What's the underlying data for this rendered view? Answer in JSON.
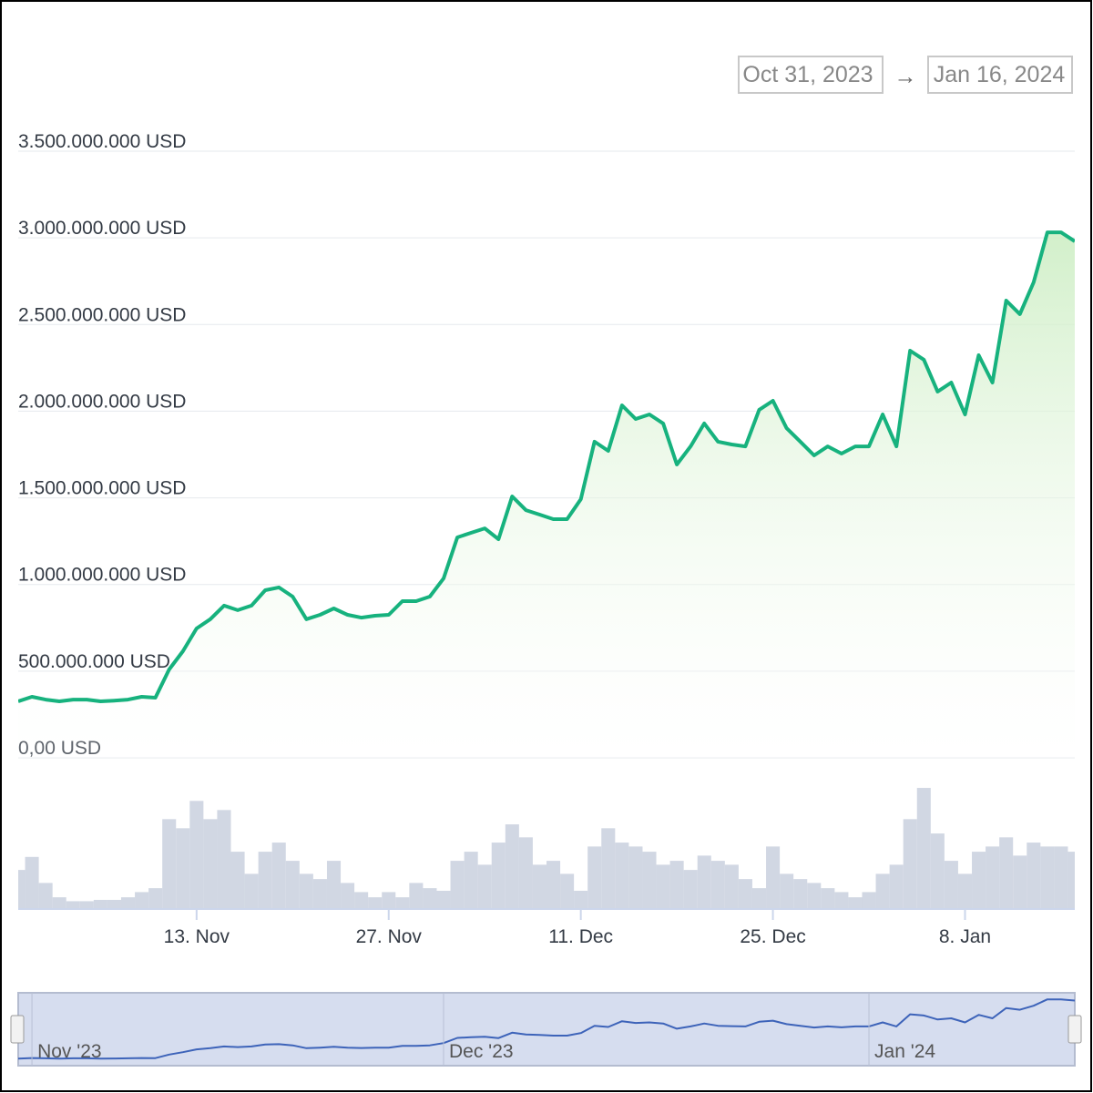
{
  "chart_data": {
    "type": "line",
    "range_from": "Oct 31, 2023",
    "range_separator": "→",
    "range_to": "Jan 16, 2024",
    "x": [
      "2023-10-31",
      "2023-11-01",
      "2023-11-02",
      "2023-11-03",
      "2023-11-04",
      "2023-11-05",
      "2023-11-06",
      "2023-11-07",
      "2023-11-08",
      "2023-11-09",
      "2023-11-10",
      "2023-11-11",
      "2023-11-12",
      "2023-11-13",
      "2023-11-14",
      "2023-11-15",
      "2023-11-16",
      "2023-11-17",
      "2023-11-18",
      "2023-11-19",
      "2023-11-20",
      "2023-11-21",
      "2023-11-22",
      "2023-11-23",
      "2023-11-24",
      "2023-11-25",
      "2023-11-26",
      "2023-11-27",
      "2023-11-28",
      "2023-11-29",
      "2023-11-30",
      "2023-12-01",
      "2023-12-02",
      "2023-12-03",
      "2023-12-04",
      "2023-12-05",
      "2023-12-06",
      "2023-12-07",
      "2023-12-08",
      "2023-12-09",
      "2023-12-10",
      "2023-12-11",
      "2023-12-12",
      "2023-12-13",
      "2023-12-14",
      "2023-12-15",
      "2023-12-16",
      "2023-12-17",
      "2023-12-18",
      "2023-12-19",
      "2023-12-20",
      "2023-12-21",
      "2023-12-22",
      "2023-12-23",
      "2023-12-24",
      "2023-12-25",
      "2023-12-26",
      "2023-12-27",
      "2023-12-28",
      "2023-12-29",
      "2023-12-30",
      "2023-12-31",
      "2024-01-01",
      "2024-01-02",
      "2024-01-03",
      "2024-01-04",
      "2024-01-05",
      "2024-01-06",
      "2024-01-07",
      "2024-01-08",
      "2024-01-09",
      "2024-01-10",
      "2024-01-11",
      "2024-01-12",
      "2024-01-13",
      "2024-01-14",
      "2024-01-15",
      "2024-01-16"
    ],
    "series": [
      {
        "color": "#17b27e",
        "values": [
          326000000,
          352000000,
          336000000,
          326000000,
          336000000,
          336000000,
          326000000,
          330000000,
          336000000,
          352000000,
          347000000,
          510000000,
          615000000,
          746000000,
          800000000,
          878000000,
          852000000,
          878000000,
          967000000,
          983000000,
          930000000,
          800000000,
          825000000,
          862000000,
          825000000,
          809000000,
          820000000,
          825000000,
          904000000,
          904000000,
          930000000,
          1035000000,
          1272000000,
          1298000000,
          1324000000,
          1261000000,
          1508000000,
          1429000000,
          1403000000,
          1377000000,
          1377000000,
          1492000000,
          1824000000,
          1771000000,
          2034000000,
          1955000000,
          1981000000,
          1929000000,
          1692000000,
          1797000000,
          1929000000,
          1824000000,
          1808000000,
          1797000000,
          2008000000,
          2060000000,
          1902000000,
          1824000000,
          1745000000,
          1797000000,
          1755000000,
          1797000000,
          1797000000,
          1981000000,
          1797000000,
          2349000000,
          2297000000,
          2113000000,
          2165000000,
          1981000000,
          2323000000,
          2165000000,
          2638000000,
          2560000000,
          2743000000,
          3032000000,
          3032000000,
          2980000000
        ]
      },
      {
        "color": "#c9d0de",
        "type": "column",
        "values": [
          30,
          40,
          20,
          9,
          6,
          6,
          7,
          7,
          9,
          13,
          16,
          69,
          62,
          83,
          69,
          76,
          44,
          27,
          44,
          51,
          37,
          27,
          23,
          37,
          20,
          13,
          9,
          13,
          9,
          20,
          16,
          14,
          37,
          44,
          34,
          51,
          65,
          55,
          34,
          37,
          27,
          14,
          48,
          62,
          51,
          48,
          44,
          34,
          37,
          30,
          41,
          37,
          34,
          23,
          16,
          48,
          27,
          23,
          20,
          16,
          13,
          9,
          13,
          27,
          34,
          69,
          93,
          58,
          37,
          27,
          44,
          48,
          55,
          41,
          51,
          48,
          48,
          44
        ]
      }
    ],
    "xlim": [
      "2023-10-31",
      "2024-01-16"
    ],
    "xticks": [
      {
        "value": "2023-11-13",
        "label": "13. Nov"
      },
      {
        "value": "2023-11-27",
        "label": "27. Nov"
      },
      {
        "value": "2023-12-11",
        "label": "11. Dec"
      },
      {
        "value": "2023-12-25",
        "label": "25. Dec"
      },
      {
        "value": "2024-01-08",
        "label": "8. Jan"
      }
    ],
    "ylim": [
      0,
      3500000000
    ],
    "yticks": [
      {
        "value": 0,
        "label": "0,00 USD"
      },
      {
        "value": 500000000,
        "label": "500.000.000 USD"
      },
      {
        "value": 1000000000,
        "label": "1.000.000.000 USD"
      },
      {
        "value": 1500000000,
        "label": "1.500.000.000 USD"
      },
      {
        "value": 2000000000,
        "label": "2.000.000.000 USD"
      },
      {
        "value": 2500000000,
        "label": "2.500.000.000 USD"
      },
      {
        "value": 3000000000,
        "label": "3.000.000.000 USD"
      },
      {
        "value": 3500000000,
        "label": "3.500.000.000 USD"
      }
    ],
    "volume_ylim": [
      0,
      100
    ],
    "navigator_color": "#3d63b9",
    "navigator_ticks": [
      {
        "value": "2023-11-01",
        "label": "Nov '23"
      },
      {
        "value": "2023-12-01",
        "label": "Dec '23"
      },
      {
        "value": "2024-01-01",
        "label": "Jan '24"
      }
    ],
    "grid": true
  }
}
